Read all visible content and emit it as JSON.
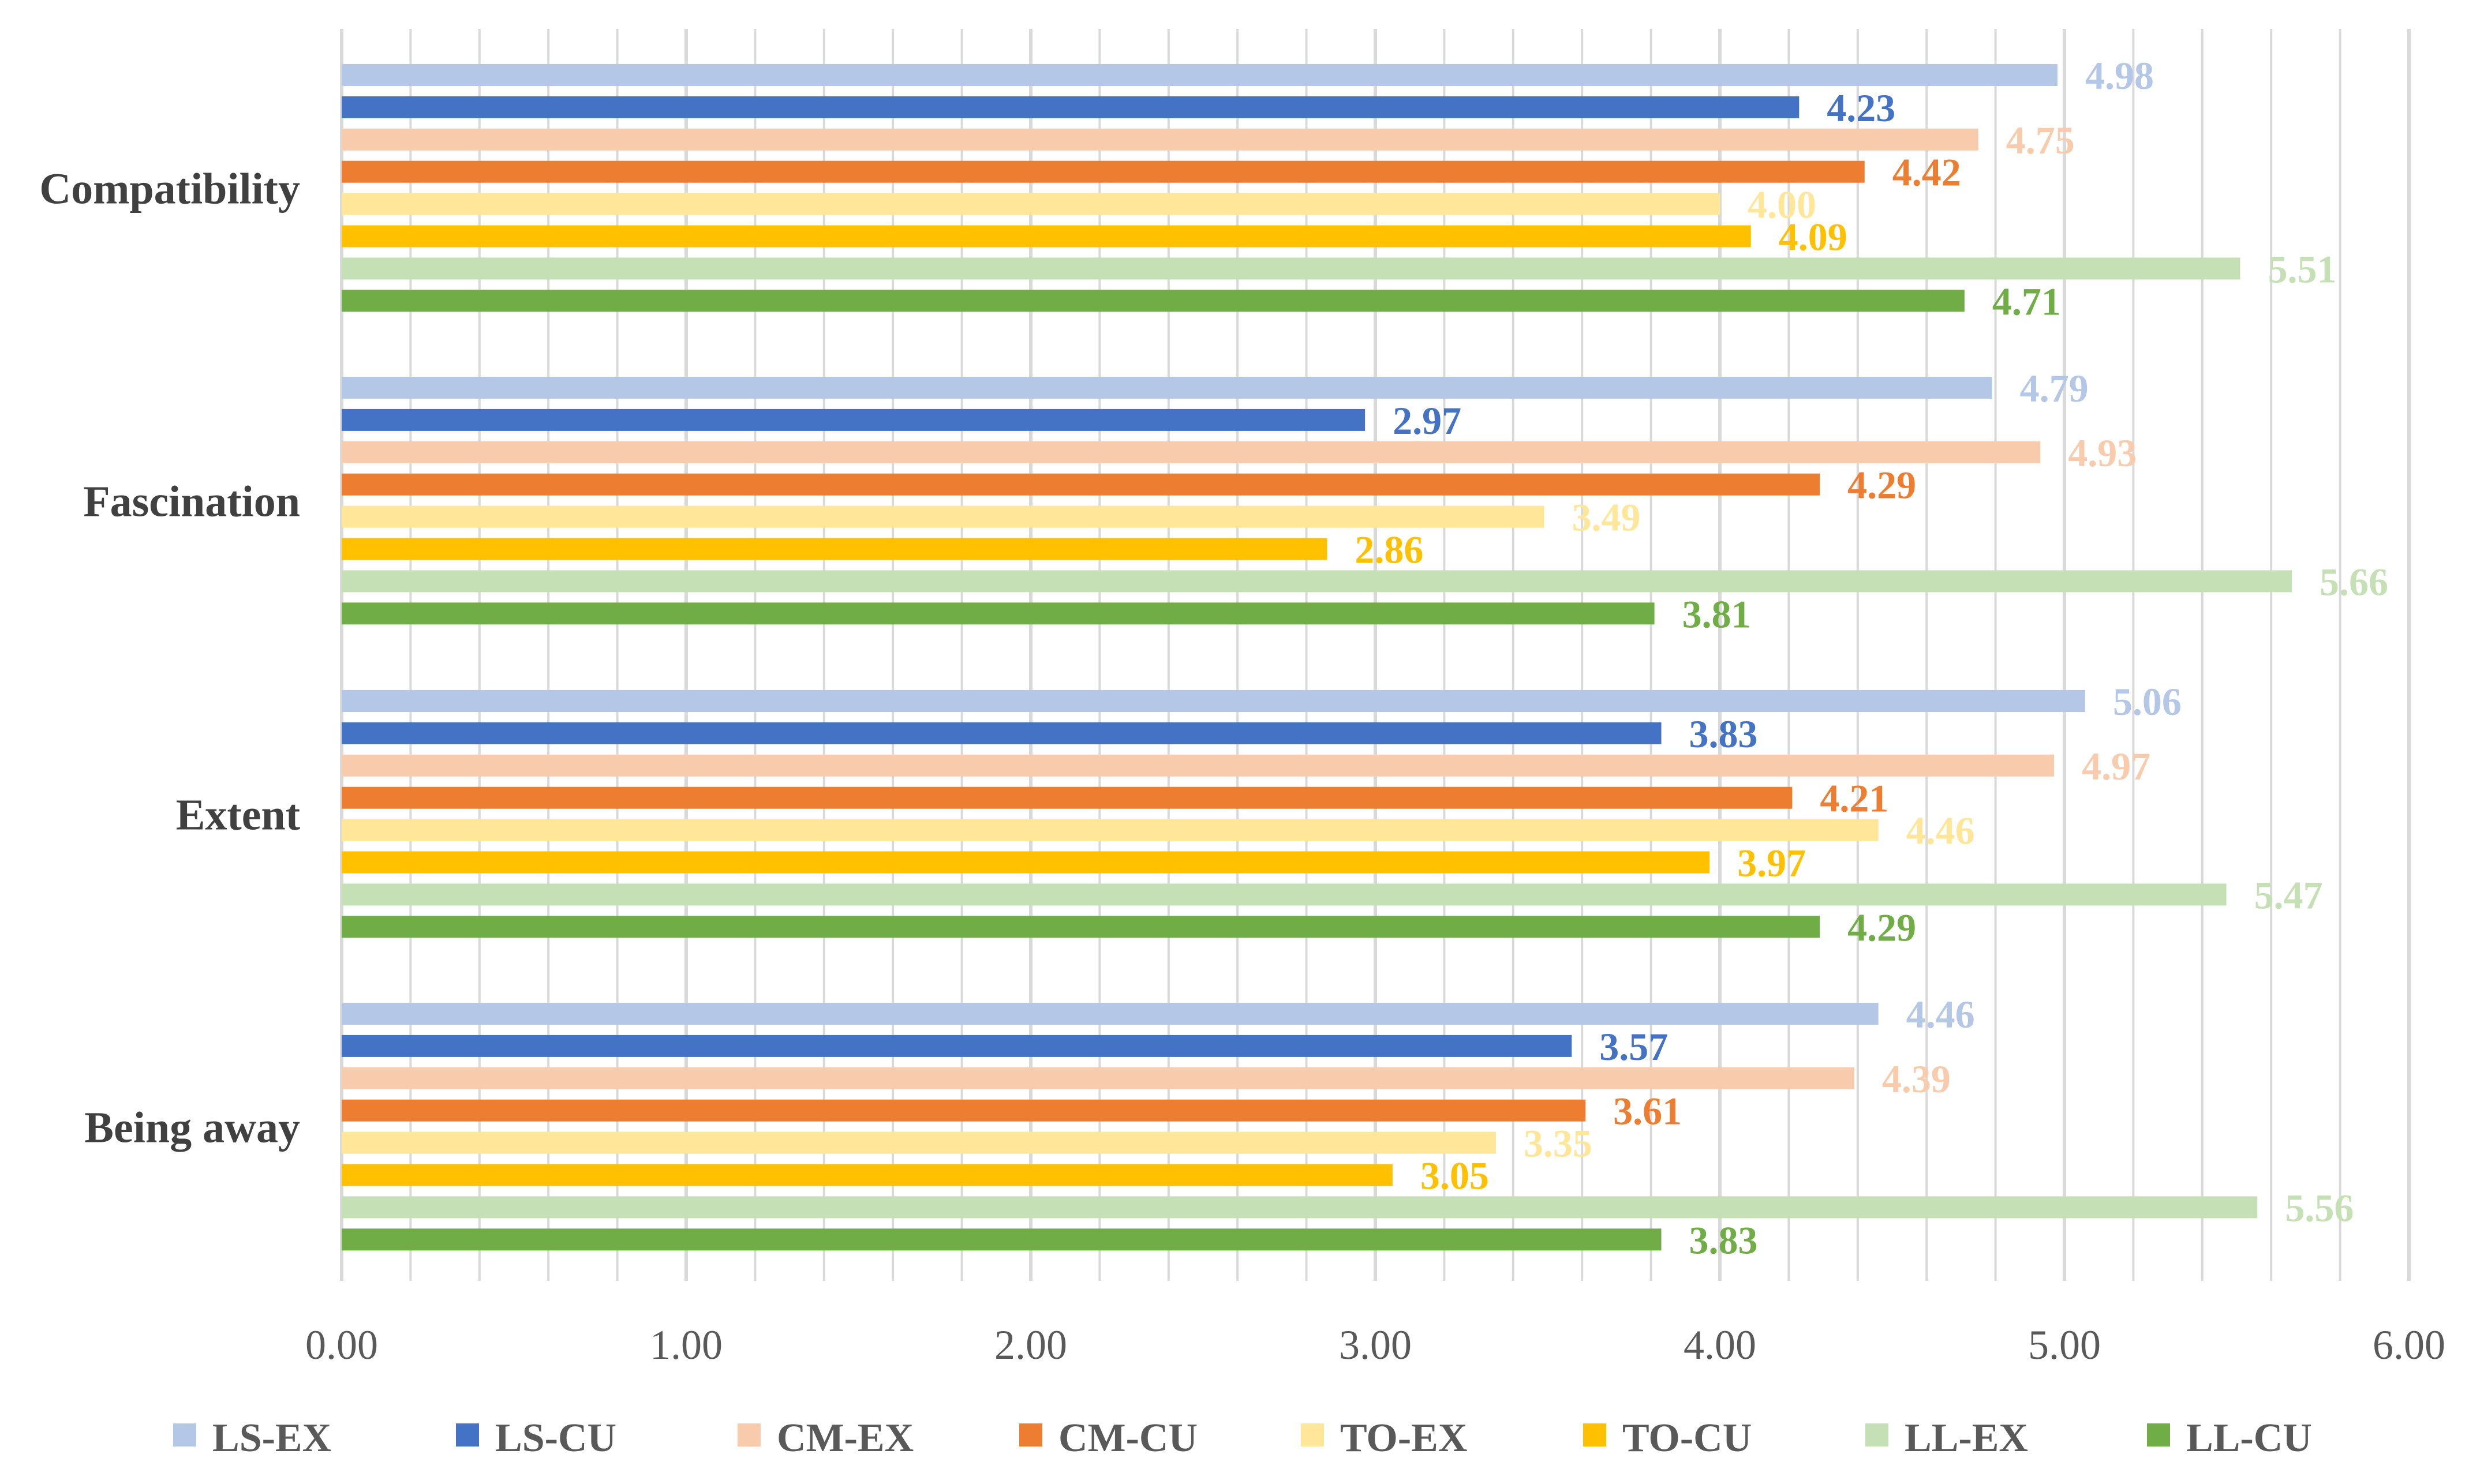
{
  "chart_data": {
    "type": "bar",
    "orientation": "horizontal",
    "title": "",
    "xlabel": "",
    "ylabel": "",
    "xlim": [
      0,
      6
    ],
    "x_ticks": [
      "0.00",
      "1.00",
      "2.00",
      "3.00",
      "4.00",
      "5.00",
      "6.00"
    ],
    "grid": true,
    "legend_position": "bottom",
    "categories": [
      "Compatibility",
      "Fascination",
      "Extent",
      "Being away"
    ],
    "series": [
      {
        "name": "LS-EX",
        "color": "#b4c7e7",
        "values": [
          4.98,
          4.79,
          5.06,
          4.46
        ],
        "labels": [
          "4.98",
          "4.79",
          "5.06",
          "4.46"
        ]
      },
      {
        "name": "LS-CU",
        "color": "#4472c4",
        "values": [
          4.23,
          2.97,
          3.83,
          3.57
        ],
        "labels": [
          "4.23",
          "2.97",
          "3.83",
          "3.57"
        ]
      },
      {
        "name": "CM-EX",
        "color": "#f8cbad",
        "values": [
          4.75,
          4.93,
          4.97,
          4.39
        ],
        "labels": [
          "4.75",
          "4.93",
          "4.97",
          "4.39"
        ]
      },
      {
        "name": "CM-CU",
        "color": "#ed7d31",
        "values": [
          4.42,
          4.29,
          4.21,
          3.61
        ],
        "labels": [
          "4.42",
          "4.29",
          "4.21",
          "3.61"
        ]
      },
      {
        "name": "TO-EX",
        "color": "#ffe699",
        "values": [
          4.0,
          3.49,
          4.46,
          3.35
        ],
        "labels": [
          "4.00",
          "3.49",
          "4.46",
          "3.35"
        ]
      },
      {
        "name": "TO-CU",
        "color": "#ffc000",
        "values": [
          4.09,
          2.86,
          3.97,
          3.05
        ],
        "labels": [
          "4.09",
          "2.86",
          "3.97",
          "3.05"
        ]
      },
      {
        "name": "LL-EX",
        "color": "#c5e0b4",
        "values": [
          5.51,
          5.66,
          5.47,
          5.56
        ],
        "labels": [
          "5.51",
          "5.66",
          "5.47",
          "5.56"
        ]
      },
      {
        "name": "LL-CU",
        "color": "#70ad47",
        "values": [
          4.71,
          3.81,
          4.29,
          3.83
        ],
        "labels": [
          "4.71",
          "3.81",
          "4.29",
          "3.83"
        ]
      }
    ]
  }
}
